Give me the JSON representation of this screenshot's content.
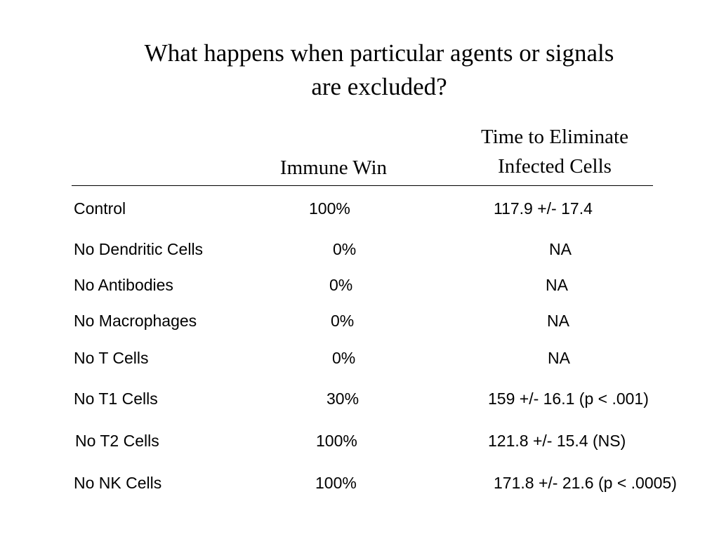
{
  "slide": {
    "title_line1": "What happens when particular agents or signals",
    "title_line2": "are excluded?"
  },
  "table": {
    "headers": {
      "immune_win": "Immune Win",
      "time_line1": "Time to Eliminate",
      "time_line2": "Infected Cells"
    },
    "rows": [
      {
        "condition": "Control",
        "immune_win": "100%",
        "time": "117.9 +/- 17.4"
      },
      {
        "condition": "No Dendritic Cells",
        "immune_win": "0%",
        "time": "NA"
      },
      {
        "condition": "No Antibodies",
        "immune_win": "0%",
        "time": "NA"
      },
      {
        "condition": "No Macrophages",
        "immune_win": "0%",
        "time": "NA"
      },
      {
        "condition": "No T Cells",
        "immune_win": "0%",
        "time": "NA"
      },
      {
        "condition": "No T1 Cells",
        "immune_win": "30%",
        "time": "159 +/- 16.1 (p < .001)"
      },
      {
        "condition": "No T2 Cells",
        "immune_win": "100%",
        "time": "121.8 +/- 15.4 (NS)"
      },
      {
        "condition": "No NK Cells",
        "immune_win": "100%",
        "time": "171.8 +/- 21.6 (p < .0005)"
      }
    ]
  }
}
